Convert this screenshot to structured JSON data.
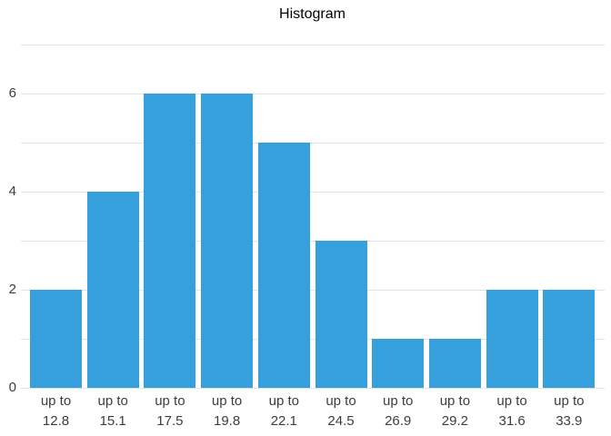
{
  "chart_data": {
    "type": "bar",
    "subtype": "histogram",
    "title": "Histogram",
    "categories": [
      "up to 12.8",
      "up to 15.1",
      "up to 17.5",
      "up to 19.8",
      "up to 22.1",
      "up to 24.5",
      "up to 26.9",
      "up to 29.2",
      "up to 31.6",
      "up to 33.9"
    ],
    "category_prefix": "up to",
    "bin_edges": [
      "12.8",
      "15.1",
      "17.5",
      "19.8",
      "22.1",
      "24.5",
      "26.9",
      "29.2",
      "31.6",
      "33.9"
    ],
    "values": [
      2,
      4,
      6,
      6,
      5,
      3,
      1,
      1,
      2,
      2
    ],
    "xlabel": "",
    "ylabel": "",
    "ylim": [
      0,
      7
    ],
    "yticks": [
      0,
      2,
      4,
      6
    ],
    "gridlines": "horizontal at every integer from 0 to 7",
    "legend": "none",
    "colors": {
      "bar": "#36a0dc",
      "grid": "#e4e4e4",
      "tick_text": "#3d3d3d",
      "title_text": "#000000",
      "background": "#ffffff"
    }
  }
}
